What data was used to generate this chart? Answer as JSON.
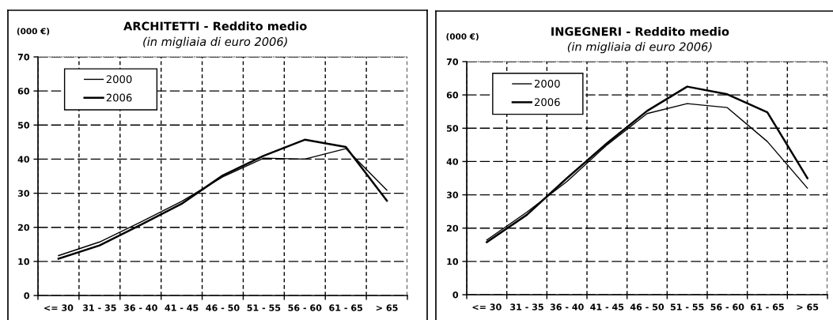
{
  "chart_data": [
    {
      "type": "line",
      "title": "ARCHITETTI - Reddito medio",
      "subtitle": "(in migliaia di euro 2006)",
      "ylabel": "(000 €)",
      "categories": [
        "<= 30",
        "31 - 35",
        "36 - 40",
        "41 - 45",
        "46 - 50",
        "51 - 55",
        "56 - 60",
        "61 - 65",
        "> 65"
      ],
      "series": [
        {
          "name": "2000",
          "color": "#000000",
          "values": [
            11.7,
            15.7,
            21.5,
            27.6,
            34.8,
            40.3,
            40.0,
            43.1,
            30.9
          ]
        },
        {
          "name": "2006",
          "color": "#000000",
          "values": [
            10.8,
            14.7,
            20.7,
            26.9,
            35.2,
            41.0,
            45.7,
            43.6,
            27.8
          ]
        }
      ],
      "ylim": [
        0,
        70
      ],
      "yticks": [
        0,
        10,
        20,
        30,
        40,
        50,
        60,
        70
      ],
      "grid": true,
      "legend": "top left"
    },
    {
      "type": "line",
      "title": "INGEGNERI - Reddito medio",
      "subtitle": "(in migliaia di euro 2006)",
      "ylabel": "(000 €)",
      "categories": [
        "<= 30",
        "31 - 35",
        "36 - 40",
        "41 - 45",
        "46 - 50",
        "51 - 55",
        "56 - 60",
        "61 - 65",
        "> 65"
      ],
      "series": [
        {
          "name": "2000",
          "color": "#000000",
          "values": [
            16.4,
            24.8,
            34.0,
            45.0,
            54.4,
            57.4,
            56.2,
            46.0,
            32.0
          ]
        },
        {
          "name": "2006",
          "color": "#000000",
          "values": [
            15.8,
            24.0,
            35.0,
            45.5,
            55.2,
            62.5,
            60.2,
            54.8,
            35.0
          ]
        }
      ],
      "ylim": [
        0,
        70
      ],
      "yticks": [
        0,
        10,
        20,
        30,
        40,
        50,
        60,
        70
      ],
      "grid": true,
      "legend": "top left"
    }
  ]
}
